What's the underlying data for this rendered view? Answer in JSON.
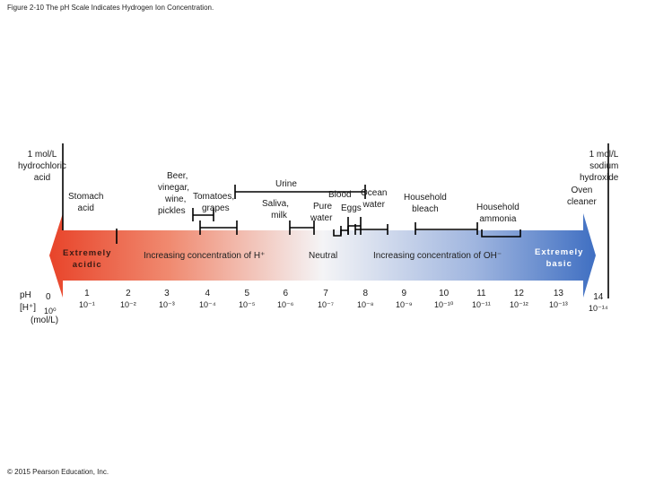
{
  "caption": "Figure 2-10 The pH Scale Indicates Hydrogen Ion Concentration.",
  "copyright": "© 2015 Pearson Education, Inc.",
  "axis_labels": {
    "ph": "pH",
    "h_plus": "[H⁺]",
    "unit": "(mol/L)"
  },
  "arrow": {
    "acidic_label": [
      "Extremely",
      "acidic"
    ],
    "basic_label": [
      "Extremely",
      "basic"
    ],
    "neutral": "Neutral",
    "increase_h": "Increasing concentration of H⁺",
    "increase_oh": "Increasing concentration of OH⁻",
    "colors": {
      "acid": "#e8442a",
      "neutral": "#f4f4f6",
      "base": "#3f6fc2"
    }
  },
  "scale": [
    {
      "ph": "0",
      "conc": "10⁰"
    },
    {
      "ph": "1",
      "conc": "10⁻¹"
    },
    {
      "ph": "2",
      "conc": "10⁻²"
    },
    {
      "ph": "3",
      "conc": "10⁻³"
    },
    {
      "ph": "4",
      "conc": "10⁻⁴"
    },
    {
      "ph": "5",
      "conc": "10⁻⁵"
    },
    {
      "ph": "6",
      "conc": "10⁻⁶"
    },
    {
      "ph": "7",
      "conc": "10⁻⁷"
    },
    {
      "ph": "8",
      "conc": "10⁻⁸"
    },
    {
      "ph": "9",
      "conc": "10⁻⁹"
    },
    {
      "ph": "10",
      "conc": "10⁻¹⁰"
    },
    {
      "ph": "11",
      "conc": "10⁻¹¹"
    },
    {
      "ph": "12",
      "conc": "10⁻¹²"
    },
    {
      "ph": "13",
      "conc": "10⁻¹³"
    },
    {
      "ph": "14",
      "conc": "10⁻¹⁴"
    }
  ],
  "examples": {
    "hcl": [
      "1 mol/L",
      "hydrochloric",
      "acid"
    ],
    "stomach": [
      "Stomach",
      "acid"
    ],
    "beer": [
      "Beer,",
      "vinegar,",
      "wine,",
      "pickles"
    ],
    "tomatoes": [
      "Tomatoes,",
      "grapes"
    ],
    "urine": "Urine",
    "saliva": [
      "Saliva,",
      "milk"
    ],
    "pure_water": [
      "Pure",
      "water"
    ],
    "blood": "Blood",
    "eggs": "Eggs",
    "ocean": [
      "Ocean",
      "water"
    ],
    "bleach": [
      "Household",
      "bleach"
    ],
    "ammonia": [
      "Household",
      "ammonia"
    ],
    "naoh": [
      "1 mol/L",
      "sodium",
      "hydroxide"
    ],
    "oven": [
      "Oven",
      "cleaner"
    ]
  }
}
